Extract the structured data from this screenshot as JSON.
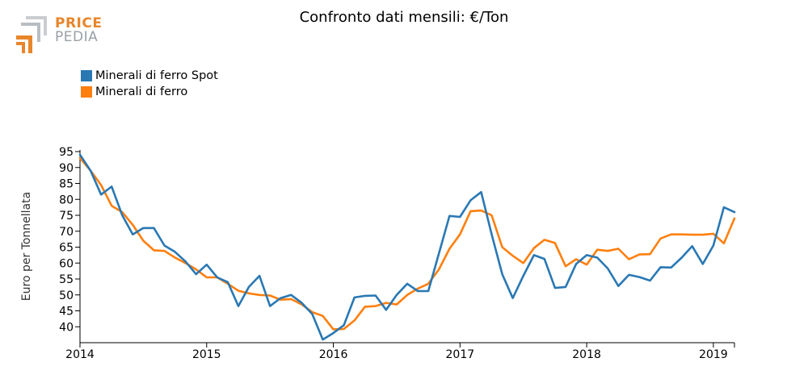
{
  "logo": {
    "line1": "PRICE",
    "line2": "PEDIA"
  },
  "colors": {
    "spot": "#2a78b3",
    "ferro": "#ff7f0e",
    "logo_orange": "#e8862b",
    "logo_grey": "#9aa0a6"
  },
  "chart_data": {
    "type": "line",
    "title": "Confronto dati mensili: €/Ton",
    "xlabel": "",
    "ylabel": "Euro per Tonnellata",
    "ylim": [
      35,
      95
    ],
    "yticks": [
      40,
      45,
      50,
      55,
      60,
      65,
      70,
      75,
      80,
      85,
      90,
      95
    ],
    "xlim": [
      "2014-01",
      "2019-02"
    ],
    "xticks": [
      "2014",
      "2015",
      "2016",
      "2017",
      "2018",
      "2019"
    ],
    "grid": false,
    "legend_position": "top-left",
    "series": [
      {
        "name": "Minerali di ferro Spot",
        "color": "#2a78b3",
        "values": [
          94,
          89,
          81.5,
          84,
          75,
          69,
          71,
          71,
          65.5,
          63.5,
          60.5,
          56.5,
          59.5,
          55.5,
          54,
          46.5,
          52.5,
          56,
          46.5,
          49,
          50,
          47.5,
          44,
          36,
          38,
          40.5,
          49.2,
          49.7,
          49.8,
          45.3,
          50,
          53.5,
          51.2,
          51.2,
          63,
          74.8,
          74.5,
          79.7,
          82.3,
          69,
          56.5,
          49,
          56,
          62.5,
          61.3,
          52.2,
          52.5,
          59.7,
          62.5,
          61.7,
          58.3,
          52.8,
          56.3,
          55.6,
          54.5,
          58.7,
          58.6,
          61.7,
          65.3,
          59.7,
          65.5,
          77.5,
          76
        ]
      },
      {
        "name": "Minerali di ferro",
        "color": "#ff7f0e",
        "values": [
          93,
          89,
          84.5,
          78,
          76,
          72,
          67,
          64,
          63.8,
          61.7,
          60,
          58,
          55.5,
          55.5,
          53.5,
          51.3,
          50.5,
          50,
          49.8,
          48.5,
          48.7,
          47,
          44.6,
          43.4,
          39.2,
          39.3,
          42,
          46.3,
          46.5,
          47.5,
          47,
          50,
          52,
          53.5,
          58,
          64.5,
          69,
          76.3,
          76.5,
          75,
          65,
          62.3,
          60,
          64.7,
          67.3,
          66.3,
          59,
          61.2,
          59.5,
          64.2,
          63.8,
          64.5,
          61.2,
          62.7,
          62.8,
          67.7,
          69,
          69,
          68.9,
          68.9,
          69.2,
          66.2,
          74
        ]
      }
    ]
  }
}
